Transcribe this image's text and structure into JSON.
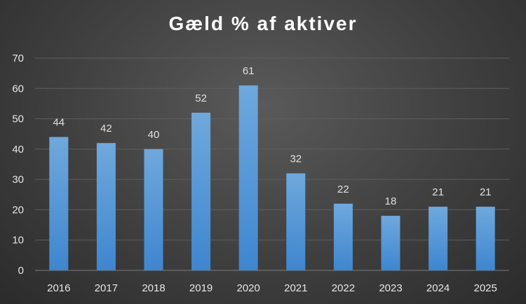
{
  "chart_data": {
    "type": "bar",
    "title": "Gæld % af aktiver",
    "xlabel": "",
    "ylabel": "",
    "categories": [
      "2016",
      "2017",
      "2018",
      "2019",
      "2020",
      "2021",
      "2022",
      "2023",
      "2024",
      "2025"
    ],
    "values": [
      44,
      42,
      40,
      52,
      61,
      32,
      22,
      18,
      21,
      21
    ],
    "data_labels": [
      "44",
      "42",
      "40",
      "52",
      "61",
      "32",
      "22",
      "18",
      "21",
      "21"
    ],
    "ylim": [
      0,
      70
    ],
    "yticks": [
      "0",
      "10",
      "20",
      "30",
      "40",
      "50",
      "60",
      "70"
    ],
    "grid": true,
    "legend": "none",
    "colors": {
      "bar_top": "#6fa8dc",
      "bar_bottom": "#3f86cf",
      "background": "#404040",
      "text": "#ffffff"
    }
  }
}
